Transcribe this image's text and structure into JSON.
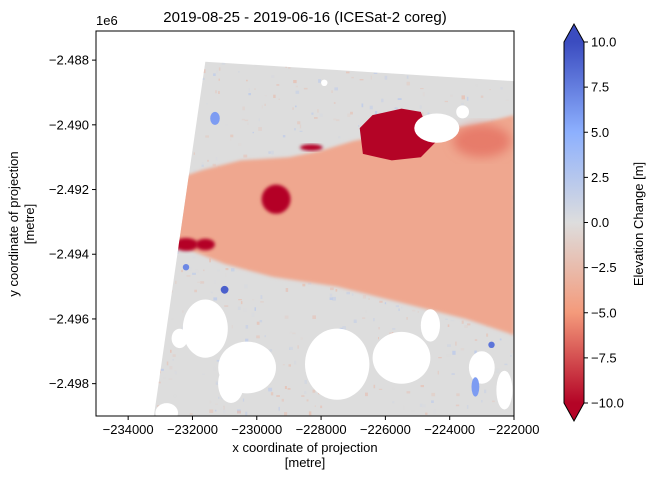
{
  "chart_data": {
    "type": "heatmap",
    "title": "2019-08-25 - 2019-06-16 (ICESat-2 coreg)",
    "xlabel_line1": "x coordinate of projection",
    "xlabel_line2": "[metre]",
    "ylabel_line1": "y coordinate of projection",
    "ylabel_line2": "[metre]",
    "y_offset_label": "1e6",
    "xlim": [
      -235000,
      -222000
    ],
    "ylim": [
      -2.499,
      -2.4871
    ],
    "x_ticks": [
      -234000,
      -232000,
      -230000,
      -228000,
      -226000,
      -224000,
      -222000
    ],
    "x_tick_labels": [
      "−234000",
      "−232000",
      "−230000",
      "−228000",
      "−226000",
      "−224000",
      "−222000"
    ],
    "y_ticks": [
      -2.488,
      -2.49,
      -2.492,
      -2.494,
      -2.496,
      -2.498
    ],
    "y_tick_labels": [
      "−2.488",
      "−2.490",
      "−2.492",
      "−2.494",
      "−2.496",
      "−2.498"
    ],
    "colorbar": {
      "label": "Elevation Change [m]",
      "range": [
        -10,
        10
      ],
      "extend": "both",
      "colormap": "coolwarm_r",
      "ticks": [
        10.0,
        7.5,
        5.0,
        2.5,
        0.0,
        -2.5,
        -5.0,
        -7.5,
        -10.0
      ],
      "tick_labels": [
        "10.0",
        "7.5",
        "5.0",
        "2.5",
        "0.0",
        "−2.5",
        "−5.0",
        "−7.5",
        "−10.0"
      ],
      "colors": {
        "max": "#3b4cc0",
        "mid_high": "#8db0fe",
        "zero": "#dddddd",
        "mid_low": "#f49a7b",
        "min": "#b40426"
      }
    },
    "data_extent": {
      "x_min_top": -231600,
      "x_min_bottom": -233200,
      "x_max": -222000,
      "y_top_left": -2.48805,
      "y_top_right": -2.48865,
      "y_bottom": -2.499
    },
    "regions": [
      {
        "kind": "glacier-lowering",
        "value": -4,
        "outline": [
          [
            -231700,
            -2.4914
          ],
          [
            -230500,
            -2.4911
          ],
          [
            -229000,
            -2.491
          ],
          [
            -228000,
            -2.4908
          ],
          [
            -227000,
            -2.4905
          ],
          [
            -226000,
            -2.4903
          ],
          [
            -224500,
            -2.4902
          ],
          [
            -223200,
            -2.49
          ],
          [
            -222000,
            -2.4897
          ],
          [
            -222000,
            -2.4965
          ],
          [
            -223500,
            -2.496
          ],
          [
            -225500,
            -2.4955
          ],
          [
            -227500,
            -2.495
          ],
          [
            -229500,
            -2.4947
          ],
          [
            -231000,
            -2.4943
          ],
          [
            -233000,
            -2.4935
          ],
          [
            -233200,
            -2.4925
          ],
          [
            -232900,
            -2.4918
          ]
        ]
      },
      {
        "kind": "strong-lowering-lobe",
        "value": -10,
        "center": [
          -229400,
          -2.4923
        ],
        "radius_x": 450,
        "radius_y": 0.00045
      },
      {
        "kind": "strong-lowering-lobe",
        "value": -10,
        "center": [
          -232200,
          -2.4937
        ],
        "radius_x": 380,
        "radius_y": 0.0002
      },
      {
        "kind": "strong-lowering-lobe",
        "value": -10,
        "center": [
          -231600,
          -2.4937
        ],
        "radius_x": 300,
        "radius_y": 0.00018
      },
      {
        "kind": "strong-lowering-lobe",
        "value": -10,
        "center": [
          -228300,
          -2.4907
        ],
        "radius_x": 350,
        "radius_y": 0.0001
      },
      {
        "kind": "strong-lowering-lobe",
        "value": -10,
        "outline": [
          [
            -226800,
            -2.4901
          ],
          [
            -226400,
            -2.4897
          ],
          [
            -225500,
            -2.4895
          ],
          [
            -224900,
            -2.4896
          ],
          [
            -224700,
            -2.4901
          ],
          [
            -224400,
            -2.4905
          ],
          [
            -224900,
            -2.491
          ],
          [
            -225800,
            -2.4911
          ],
          [
            -226700,
            -2.4909
          ]
        ]
      },
      {
        "kind": "moderate-lowering",
        "value": -6,
        "center": [
          -223000,
          -2.4905
        ],
        "radius_x": 900,
        "radius_y": 0.0005
      },
      {
        "kind": "no-data-gap",
        "center": [
          -224400,
          -2.4901
        ],
        "radius_x": 700,
        "radius_y": 0.00045
      },
      {
        "kind": "no-data-gap",
        "center": [
          -231600,
          -2.4963
        ],
        "radius_x": 700,
        "radius_y": 0.0009
      },
      {
        "kind": "no-data-gap",
        "center": [
          -230300,
          -2.4975
        ],
        "radius_x": 900,
        "radius_y": 0.0008
      },
      {
        "kind": "no-data-gap",
        "center": [
          -227500,
          -2.4974
        ],
        "radius_x": 1000,
        "radius_y": 0.0011
      },
      {
        "kind": "no-data-gap",
        "center": [
          -225500,
          -2.4972
        ],
        "radius_x": 900,
        "radius_y": 0.0008
      },
      {
        "kind": "no-data-gap",
        "center": [
          -224600,
          -2.4962
        ],
        "radius_x": 300,
        "radius_y": 0.0005
      },
      {
        "kind": "no-data-gap",
        "center": [
          -223000,
          -2.4975
        ],
        "radius_x": 400,
        "radius_y": 0.0005
      },
      {
        "kind": "no-data-gap",
        "center": [
          -222300,
          -2.4982
        ],
        "radius_x": 250,
        "radius_y": 0.0006
      },
      {
        "kind": "no-data-gap",
        "center": [
          -230800,
          -2.498
        ],
        "radius_x": 400,
        "radius_y": 0.0006
      },
      {
        "kind": "no-data-gap",
        "center": [
          -232800,
          -2.4989
        ],
        "radius_x": 350,
        "radius_y": 0.0003
      },
      {
        "kind": "no-data-gap",
        "center": [
          -232400,
          -2.4966
        ],
        "radius_x": 250,
        "radius_y": 0.0003
      },
      {
        "kind": "no-data-gap",
        "center": [
          -227900,
          -2.4887
        ],
        "radius_x": 100,
        "radius_y": 0.0001
      },
      {
        "kind": "no-data-gap",
        "center": [
          -223600,
          -2.4896
        ],
        "radius_x": 200,
        "radius_y": 0.0002
      },
      {
        "kind": "surface-raising-spot",
        "value": 9,
        "center": [
          -231000,
          -2.4951
        ],
        "radius_x": 120,
        "radius_y": 0.00012
      },
      {
        "kind": "surface-raising-spot",
        "value": 7,
        "center": [
          -232200,
          -2.4944
        ],
        "radius_x": 100,
        "radius_y": 0.0001
      },
      {
        "kind": "surface-raising-spot",
        "value": 6,
        "center": [
          -223200,
          -2.4981
        ],
        "radius_x": 120,
        "radius_y": 0.0003
      },
      {
        "kind": "surface-raising-spot",
        "value": 6,
        "center": [
          -231300,
          -2.4898
        ],
        "radius_x": 150,
        "radius_y": 0.0002
      },
      {
        "kind": "surface-raising-spot",
        "value": 8,
        "center": [
          -222700,
          -2.4968
        ],
        "radius_x": 100,
        "radius_y": 0.0001
      }
    ]
  }
}
